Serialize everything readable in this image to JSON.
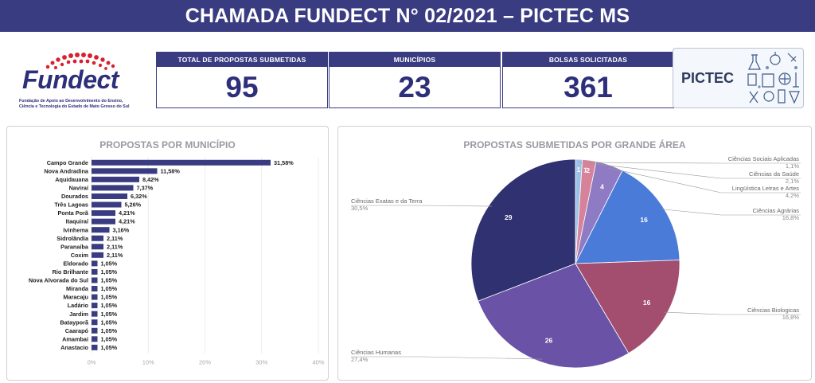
{
  "header": {
    "title": "CHAMADA FUNDECT N° 02/2021 – PICTEC MS"
  },
  "logo": {
    "name": "Fundect",
    "subtitle_line1": "Fundação de Apoio ao Desenvolvimento do Ensino,",
    "subtitle_line2": "Ciência e Tecnologia do Estado de Mato Grosso do Sul"
  },
  "kpis": [
    {
      "label": "TOTAL DE PROPOSTAS SUBMETIDAS",
      "value": "95"
    },
    {
      "label": "MUNICÍPIOS",
      "value": "23"
    },
    {
      "label": "BOLSAS SOLICITADAS",
      "value": "361"
    }
  ],
  "pictec_logo": {
    "text": "PICTEC"
  },
  "colors": {
    "primary": "#3a3c82",
    "bar": "#3a3c82",
    "pie": [
      "#2f3171",
      "#6a52a6",
      "#a34d6f",
      "#4a7bd8",
      "#8f7bc4",
      "#d6829a",
      "#9cc1e6"
    ]
  },
  "chart_data": [
    {
      "type": "bar",
      "orientation": "horizontal",
      "title": "PROPOSTAS POR MUNICÍPIO",
      "categories": [
        "Campo Grande",
        "Nova Andradina",
        "Aquidauana",
        "Naviraí",
        "Dourados",
        "Três Lagoas",
        "Ponta Porã",
        "Itaquiraí",
        "Ivinhema",
        "Sidrolândia",
        "Paranaíba",
        "Coxim",
        "Eldorado",
        "Rio Brilhante",
        "Nova Alvorada do Sul",
        "Miranda",
        "Maracaju",
        "Ladário",
        "Jardim",
        "Batayporã",
        "Caarapó",
        "Amambai",
        "Anastacio"
      ],
      "values": [
        31.58,
        11.58,
        8.42,
        7.37,
        6.32,
        5.26,
        4.21,
        4.21,
        3.16,
        2.11,
        2.11,
        2.11,
        1.05,
        1.05,
        1.05,
        1.05,
        1.05,
        1.05,
        1.05,
        1.05,
        1.05,
        1.05,
        1.05
      ],
      "value_labels": [
        "31,58%",
        "11,58%",
        "8,42%",
        "7,37%",
        "6,32%",
        "5,26%",
        "4,21%",
        "4,21%",
        "3,16%",
        "2,11%",
        "2,11%",
        "2,11%",
        "1,05%",
        "1,05%",
        "1,05%",
        "1,05%",
        "1,05%",
        "1,05%",
        "1,05%",
        "1,05%",
        "1,05%",
        "1,05%",
        "1,05%"
      ],
      "xlim": [
        0,
        40
      ],
      "ticks": [
        0,
        10,
        20,
        30,
        40
      ],
      "tick_labels": [
        "0%",
        "10%",
        "20%",
        "30%",
        "40%"
      ],
      "grid": true
    },
    {
      "type": "pie",
      "title": "PROPOSTAS SUBMETIDAS POR GRANDE ÁREA",
      "slices": [
        {
          "name": "Ciências Exatas e da Terra",
          "value": 29,
          "pct": "30,5%"
        },
        {
          "name": "Ciências Humanas",
          "value": 26,
          "pct": "27,4%"
        },
        {
          "name": "Ciências Biologicas",
          "value": 16,
          "pct": "16,8%"
        },
        {
          "name": "Ciências Agrárias",
          "value": 16,
          "pct": "16,8%"
        },
        {
          "name": "Lingüística  Letras e Artes",
          "value": 4,
          "pct": "4,2%"
        },
        {
          "name": "Ciências da Saúde",
          "value": 2,
          "pct": "2,1%"
        },
        {
          "name": "Ciências Sociais Aplicadas",
          "value": 1,
          "pct": "1,1%"
        }
      ],
      "extra_slice_labels": [
        "1"
      ],
      "clockwise_from_top_order": [
        "Ciências Sociais Aplicadas",
        "Ciências da Saúde",
        "Lingüística  Letras e Artes",
        "Ciências Agrárias",
        "Ciências Biologicas",
        "Ciências Humanas",
        "Ciências Exatas e da Terra"
      ]
    }
  ]
}
